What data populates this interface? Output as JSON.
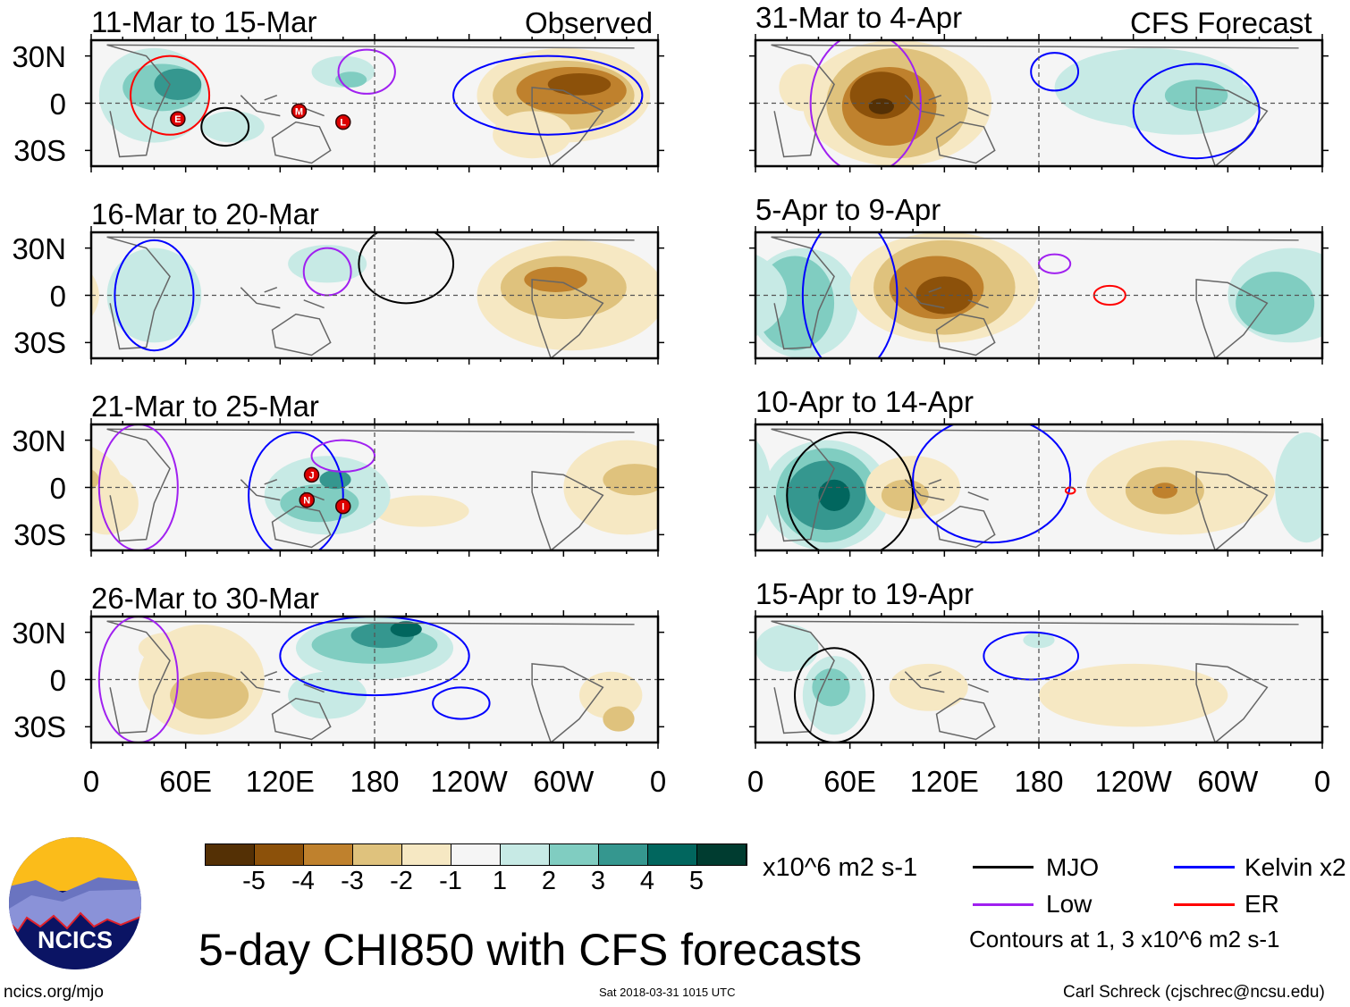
{
  "chart_data": {
    "type": "heatmap",
    "title": "5-day CHI850 with CFS forecasts",
    "units": "x10^6 m2 s-1",
    "column_headers": [
      "Observed",
      "CFS Forecast"
    ],
    "panels": [
      {
        "title": "11-Mar to 15-Mar",
        "storms": [
          "E",
          "M",
          "L"
        ]
      },
      {
        "title": "16-Mar to 20-Mar",
        "storms": []
      },
      {
        "title": "21-Mar to 25-Mar",
        "storms": [
          "J",
          "N",
          "I"
        ]
      },
      {
        "title": "26-Mar to 30-Mar",
        "storms": []
      },
      {
        "title": "31-Mar to 4-Apr",
        "storms": []
      },
      {
        "title": "5-Apr to 9-Apr",
        "storms": []
      },
      {
        "title": "10-Apr to 14-Apr",
        "storms": []
      },
      {
        "title": "15-Apr to 19-Apr",
        "storms": []
      }
    ],
    "lat_ticks": [
      "30N",
      "0",
      "30S"
    ],
    "lon_ticks": [
      "0",
      "60E",
      "120E",
      "180",
      "120W",
      "60W",
      "0"
    ],
    "colorbar": {
      "labels": [
        "-5",
        "-4",
        "-3",
        "-2",
        "-1",
        "1",
        "2",
        "3",
        "4",
        "5"
      ],
      "colors": [
        "#543005",
        "#8c510a",
        "#bf812d",
        "#dfc27d",
        "#f6e8c3",
        "#f5f5f5",
        "#c7eae5",
        "#80cdc1",
        "#35978f",
        "#01665e",
        "#003c30"
      ]
    },
    "legend": [
      {
        "label": "MJO",
        "color": "#000000"
      },
      {
        "label": "Kelvin x2",
        "color": "#0000ff"
      },
      {
        "label": "Low",
        "color": "#a020f0"
      },
      {
        "label": "ER",
        "color": "#ff0000"
      }
    ],
    "contour_note": "Contours at 1, 3 x10^6 m2 s-1"
  },
  "footer": {
    "logo_text": "NCICS",
    "url": "ncics.org/mjo",
    "timestamp": "Sat 2018-03-31 1015 UTC",
    "author": "Carl Schreck (cjschrec@ncsu.edu)"
  }
}
